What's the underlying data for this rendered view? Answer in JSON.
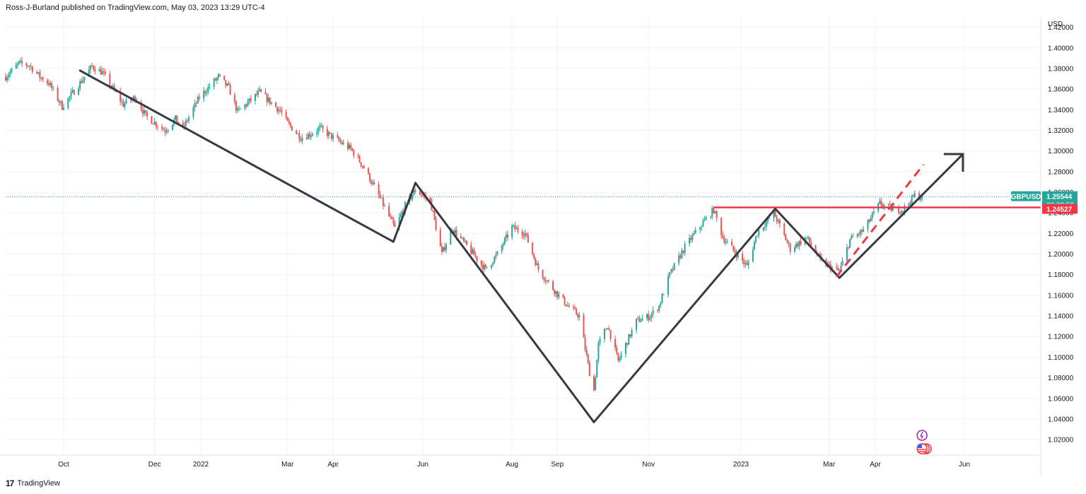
{
  "header": {
    "text": "Ross-J-Burland published on TradingView.com, May 03, 2023 13:29 UTC-4"
  },
  "footer": {
    "logo": "17",
    "brand": "TradingView"
  },
  "colors": {
    "up": "#26a69a",
    "down": "#ef5350",
    "trend": "#363a45",
    "resistance": "#f23645",
    "symbol_badge": "#26a69a",
    "level_badge": "#f23645",
    "grid": "#f0f3fa"
  },
  "chart_data": {
    "type": "candlestick",
    "symbol": "GBPUSD",
    "currency": "USD",
    "ylim": [
      1.005,
      1.43
    ],
    "y_ticks": [
      "1.42000",
      "1.40000",
      "1.38000",
      "1.36000",
      "1.34000",
      "1.32000",
      "1.30000",
      "1.28000",
      "1.26000",
      "1.24000",
      "1.22000",
      "1.20000",
      "1.18000",
      "1.16000",
      "1.14000",
      "1.12000",
      "1.10000",
      "1.08000",
      "1.06000",
      "1.04000",
      "1.02000"
    ],
    "x_labels": [
      "Oct",
      "Dec",
      "2022",
      "Mar",
      "Apr",
      "Jun",
      "Aug",
      "Sep",
      "Nov",
      "2023",
      "Mar",
      "Apr",
      "Jun"
    ],
    "x_dates": [
      "2021-10-01",
      "2021-12-01",
      "2022-01-01",
      "2022-03-01",
      "2022-04-01",
      "2022-06-01",
      "2022-08-01",
      "2022-09-01",
      "2022-11-01",
      "2023-01-01",
      "2023-03-01",
      "2023-04-01",
      "2023-06-01"
    ],
    "last_price": "1.25544",
    "countdown": "03:30:50",
    "resistance_level": "1.24527",
    "price_path": [
      [
        "2021-08-23",
        1.372
      ],
      [
        "2021-09-01",
        1.385
      ],
      [
        "2021-09-08",
        1.383
      ],
      [
        "2021-09-15",
        1.372
      ],
      [
        "2021-09-21",
        1.366
      ],
      [
        "2021-09-30",
        1.343
      ],
      [
        "2021-10-08",
        1.358
      ],
      [
        "2021-10-20",
        1.382
      ],
      [
        "2021-10-27",
        1.376
      ],
      [
        "2021-11-10",
        1.345
      ],
      [
        "2021-11-18",
        1.352
      ],
      [
        "2021-11-25",
        1.334
      ],
      [
        "2021-12-08",
        1.32
      ],
      [
        "2021-12-15",
        1.331
      ],
      [
        "2021-12-20",
        1.322
      ],
      [
        "2021-12-31",
        1.352
      ],
      [
        "2022-01-13",
        1.372
      ],
      [
        "2022-01-20",
        1.361
      ],
      [
        "2022-01-26",
        1.338
      ],
      [
        "2022-02-10",
        1.357
      ],
      [
        "2022-02-24",
        1.339
      ],
      [
        "2022-03-01",
        1.327
      ],
      [
        "2022-03-10",
        1.313
      ],
      [
        "2022-03-16",
        1.316
      ],
      [
        "2022-03-23",
        1.322
      ],
      [
        "2022-03-31",
        1.314
      ],
      [
        "2022-04-13",
        1.302
      ],
      [
        "2022-04-22",
        1.284
      ],
      [
        "2022-05-03",
        1.254
      ],
      [
        "2022-05-13",
        1.225
      ],
      [
        "2022-05-20",
        1.247
      ],
      [
        "2022-05-27",
        1.262
      ],
      [
        "2022-06-06",
        1.252
      ],
      [
        "2022-06-14",
        1.2
      ],
      [
        "2022-06-21",
        1.225
      ],
      [
        "2022-07-05",
        1.201
      ],
      [
        "2022-07-14",
        1.185
      ],
      [
        "2022-07-22",
        1.2
      ],
      [
        "2022-08-01",
        1.226
      ],
      [
        "2022-08-10",
        1.22
      ],
      [
        "2022-08-19",
        1.185
      ],
      [
        "2022-08-31",
        1.163
      ],
      [
        "2022-09-08",
        1.15
      ],
      [
        "2022-09-16",
        1.14
      ],
      [
        "2022-09-23",
        1.085
      ],
      [
        "2022-09-26",
        1.068
      ],
      [
        "2022-09-29",
        1.112
      ],
      [
        "2022-10-05",
        1.131
      ],
      [
        "2022-10-12",
        1.096
      ],
      [
        "2022-10-24",
        1.135
      ],
      [
        "2022-11-02",
        1.14
      ],
      [
        "2022-11-08",
        1.15
      ],
      [
        "2022-11-15",
        1.18
      ],
      [
        "2022-11-25",
        1.207
      ],
      [
        "2022-12-05",
        1.227
      ],
      [
        "2022-12-14",
        1.243
      ],
      [
        "2022-12-20",
        1.216
      ],
      [
        "2023-01-05",
        1.188
      ],
      [
        "2023-01-12",
        1.221
      ],
      [
        "2023-01-23",
        1.24
      ],
      [
        "2023-02-03",
        1.205
      ],
      [
        "2023-02-14",
        1.216
      ],
      [
        "2023-02-24",
        1.192
      ],
      [
        "2023-03-08",
        1.183
      ],
      [
        "2023-03-15",
        1.214
      ],
      [
        "2023-03-24",
        1.223
      ],
      [
        "2023-04-04",
        1.249
      ],
      [
        "2023-04-12",
        1.244
      ],
      [
        "2023-04-20",
        1.243
      ],
      [
        "2023-04-28",
        1.257
      ],
      [
        "2023-05-03",
        1.2554
      ]
    ],
    "annotations": {
      "trend_lines": [
        [
          [
            "2021-10-12",
            1.378
          ],
          [
            "2022-05-12",
            1.212
          ]
        ],
        [
          [
            "2022-05-12",
            1.212
          ],
          [
            "2022-05-27",
            1.269
          ]
        ],
        [
          [
            "2022-05-27",
            1.269
          ],
          [
            "2022-09-26",
            1.037
          ]
        ],
        [
          [
            "2022-09-26",
            1.037
          ],
          [
            "2023-01-24",
            1.244
          ]
        ],
        [
          [
            "2023-01-24",
            1.244
          ],
          [
            "2023-03-08",
            1.177
          ]
        ],
        [
          [
            "2023-03-08",
            1.177
          ],
          [
            "2023-05-31",
            1.297
          ]
        ]
      ],
      "dashed_line": [
        [
          "2023-03-06",
          1.178
        ],
        [
          "2023-05-04",
          1.287
        ]
      ],
      "horizontal_line": {
        "from": "2022-12-14",
        "value": 1.24527
      }
    }
  }
}
